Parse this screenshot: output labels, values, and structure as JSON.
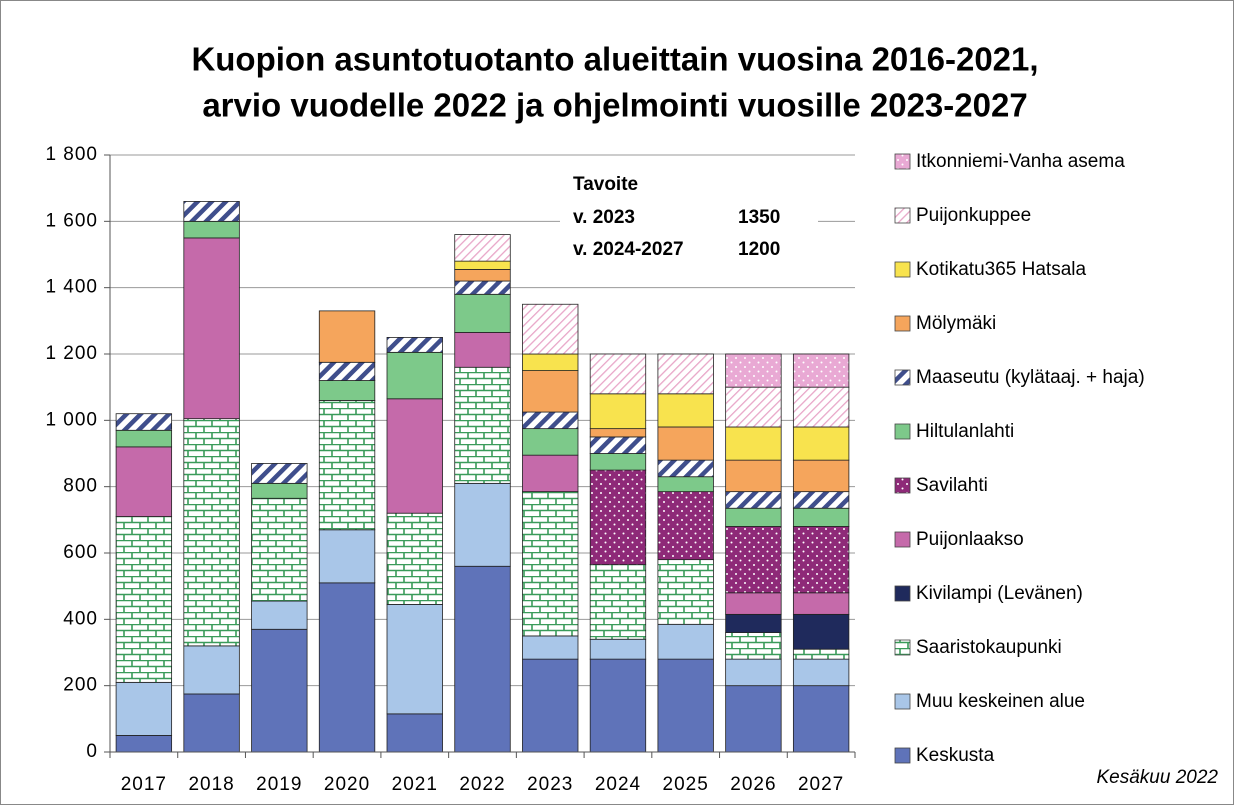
{
  "chart_data": {
    "type": "stacked_bar",
    "title": [
      "Kuopion asuntotuotanto alueittain vuosina 2016-2021,",
      "arvio vuodelle 2022 ja ohjelmointi vuosille 2023-2027"
    ],
    "categories": [
      "2017",
      "2018",
      "2019",
      "2020",
      "2021",
      "2022",
      "2023",
      "2024",
      "2025",
      "2026",
      "2027"
    ],
    "series": [
      {
        "name": "Keskusta",
        "color": "#5f73b9",
        "pattern": "solid",
        "values": [
          50,
          175,
          370,
          510,
          115,
          560,
          280,
          280,
          280,
          200,
          200
        ]
      },
      {
        "name": "Muu keskeinen alue",
        "color": "#a9c6e8",
        "pattern": "solid",
        "values": [
          160,
          145,
          85,
          160,
          330,
          250,
          70,
          60,
          105,
          80,
          80
        ]
      },
      {
        "name": "Saaristokaupunki",
        "color": "#3a9b5a",
        "pattern": "brick",
        "values": [
          500,
          685,
          310,
          390,
          275,
          350,
          435,
          225,
          195,
          80,
          30
        ]
      },
      {
        "name": "Kivilampi (Levänen)",
        "color": "#1f2a5c",
        "pattern": "solid",
        "values": [
          0,
          0,
          0,
          0,
          0,
          0,
          0,
          0,
          0,
          55,
          105
        ]
      },
      {
        "name": "Puijonlaakso",
        "color": "#c56aaa",
        "pattern": "solid",
        "values": [
          210,
          545,
          0,
          0,
          345,
          105,
          110,
          0,
          0,
          65,
          65
        ]
      },
      {
        "name": "Savilahti",
        "color": "#8e2a78",
        "pattern": "dots",
        "values": [
          0,
          0,
          0,
          0,
          0,
          0,
          0,
          285,
          205,
          200,
          200
        ]
      },
      {
        "name": "Hiltulanlahti",
        "color": "#7dc98a",
        "pattern": "solid",
        "values": [
          50,
          50,
          45,
          60,
          140,
          115,
          80,
          50,
          45,
          55,
          55
        ]
      },
      {
        "name": "Maaseutu (kylätaaj. + haja)",
        "color": "#3f4e8c",
        "pattern": "stripes",
        "values": [
          50,
          60,
          60,
          55,
          45,
          40,
          50,
          50,
          50,
          50,
          50
        ]
      },
      {
        "name": "Mölymäki",
        "color": "#f5a55c",
        "pattern": "solid",
        "values": [
          0,
          0,
          0,
          155,
          0,
          35,
          125,
          25,
          100,
          95,
          95
        ]
      },
      {
        "name": "Kotikatu365 Hatsala",
        "color": "#f8e34e",
        "pattern": "solid",
        "values": [
          0,
          0,
          0,
          0,
          0,
          25,
          50,
          105,
          100,
          100,
          100
        ]
      },
      {
        "name": "Puijonkuppee",
        "color": "#e8a6c8",
        "pattern": "hatch",
        "values": [
          0,
          0,
          0,
          0,
          0,
          80,
          150,
          120,
          120,
          120,
          120
        ]
      },
      {
        "name": "Itkonniemi-Vanha asema",
        "color": "#e9a9d4",
        "pattern": "dots",
        "values": [
          0,
          0,
          0,
          0,
          0,
          0,
          0,
          0,
          0,
          100,
          100
        ]
      }
    ],
    "ylim": [
      0,
      1800
    ],
    "yticks": [
      0,
      200,
      400,
      600,
      800,
      {
        "value": 1000,
        "label": "1 000"
      },
      {
        "value": 1200,
        "label": "1 200"
      },
      {
        "value": 1400,
        "label": "1 400"
      },
      {
        "value": 1600,
        "label": "1 600"
      },
      {
        "value": 1800,
        "label": "1 800"
      }
    ],
    "grid": true,
    "legend": "right",
    "annotations": {
      "heading": "Tavoite",
      "rows": [
        [
          "v. 2023",
          "1350"
        ],
        [
          "v. 2024-2027",
          "1200"
        ]
      ]
    },
    "note": "Kesäkuu 2022"
  }
}
